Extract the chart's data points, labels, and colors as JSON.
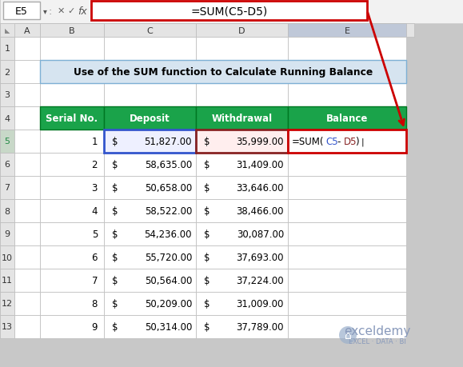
{
  "title": "Use of the SUM function to Calculate Running Balance",
  "formula_bar_cell": "E5",
  "formula_bar_text": "=SUM(C5-D5)",
  "table_headers": [
    "Serial No.",
    "Deposit",
    "Withdrawal",
    "Balance"
  ],
  "serial_nos": [
    1,
    2,
    3,
    4,
    5,
    6,
    7,
    8,
    9
  ],
  "deposits": [
    "51,827.00",
    "58,635.00",
    "50,658.00",
    "58,522.00",
    "54,236.00",
    "55,720.00",
    "50,564.00",
    "50,209.00",
    "50,314.00"
  ],
  "withdrawals": [
    "35,999.00",
    "31,409.00",
    "33,646.00",
    "38,466.00",
    "30,087.00",
    "37,693.00",
    "37,224.00",
    "31,009.00",
    "37,789.00"
  ],
  "balance_formula": "=SUM(C5-D5)",
  "header_bg": "#1aA34a",
  "header_fg": "#FFFFFF",
  "title_bg": "#D6E4F0",
  "title_border": "#7EB0D4",
  "cell_bg": "#FFFFFF",
  "grid_color": "#BBBBBB",
  "formula_box_border": "#CC0000",
  "deposit_highlight_border": "#3355CC",
  "deposit_highlight_bg": "#EEF0FF",
  "withdrawal_highlight_border": "#882222",
  "withdrawal_highlight_bg": "#FFEEEE",
  "balance_cell_border": "#CC0000",
  "formula_bar_bg": "#F2F2F2",
  "col_header_bg": "#E4E4E4",
  "row_header_bg": "#E4E4E4",
  "row5_header_bg": "#C8D8C8",
  "sheet_bg": "#FFFFFF",
  "outer_bg": "#C8C8C8",
  "arrow_color": "#CC0000",
  "formula_text_c": "#3355CC",
  "formula_text_d": "#882222",
  "watermark_text": "exceldemy",
  "watermark_sub": "EXCEL · DATA · BI"
}
